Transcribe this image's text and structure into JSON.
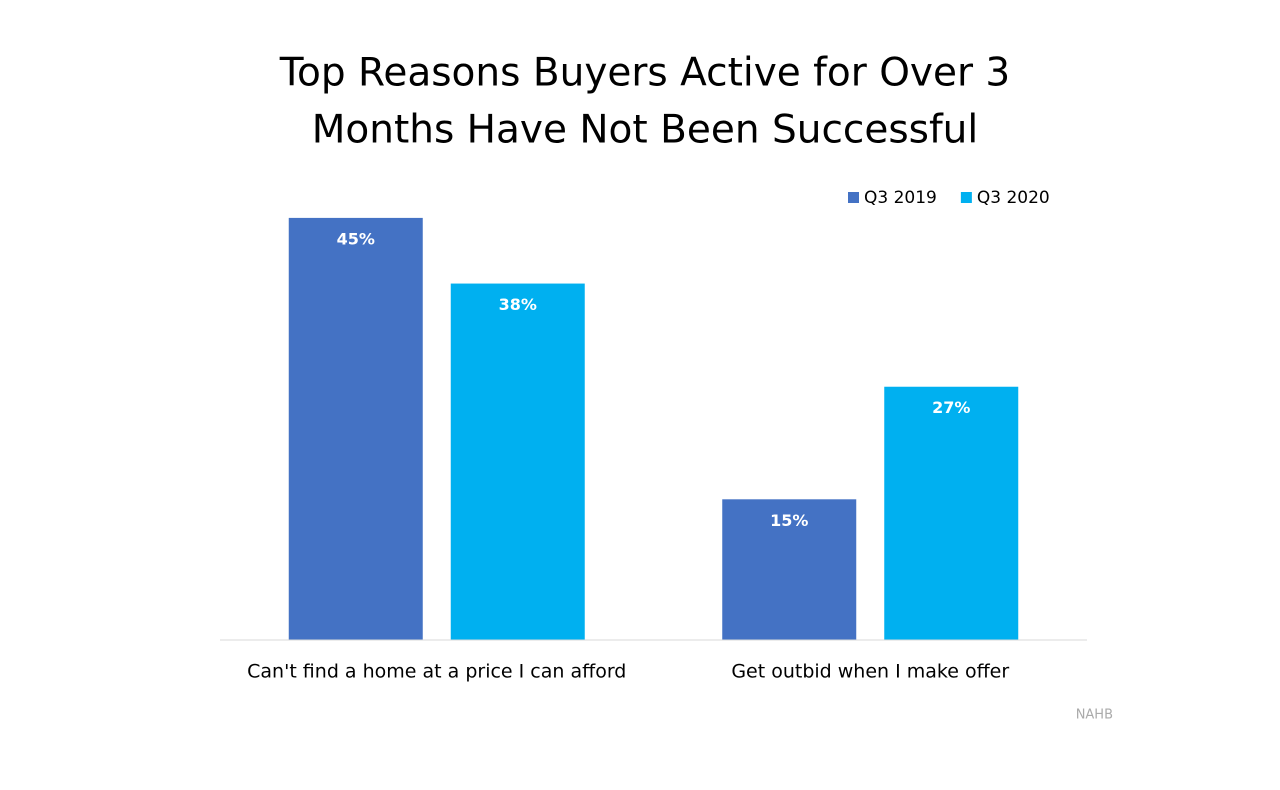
{
  "chart_data": {
    "type": "bar",
    "title": [
      "Top Reasons Buyers Active for Over 3",
      "Months Have Not Been Successful"
    ],
    "categories": [
      "Can't find a home at a price I can afford",
      "Get outbid when I make offer"
    ],
    "series": [
      {
        "name": "Q3 2019",
        "color": "#4472c4",
        "values": [
          45,
          15
        ],
        "value_labels": [
          "45%",
          "15%"
        ]
      },
      {
        "name": "Q3 2020",
        "color": "#00b0f0",
        "values": [
          38,
          27
        ],
        "value_labels": [
          "38%",
          "27%"
        ]
      }
    ],
    "ylim": [
      0,
      50
    ],
    "source": "NAHB"
  }
}
